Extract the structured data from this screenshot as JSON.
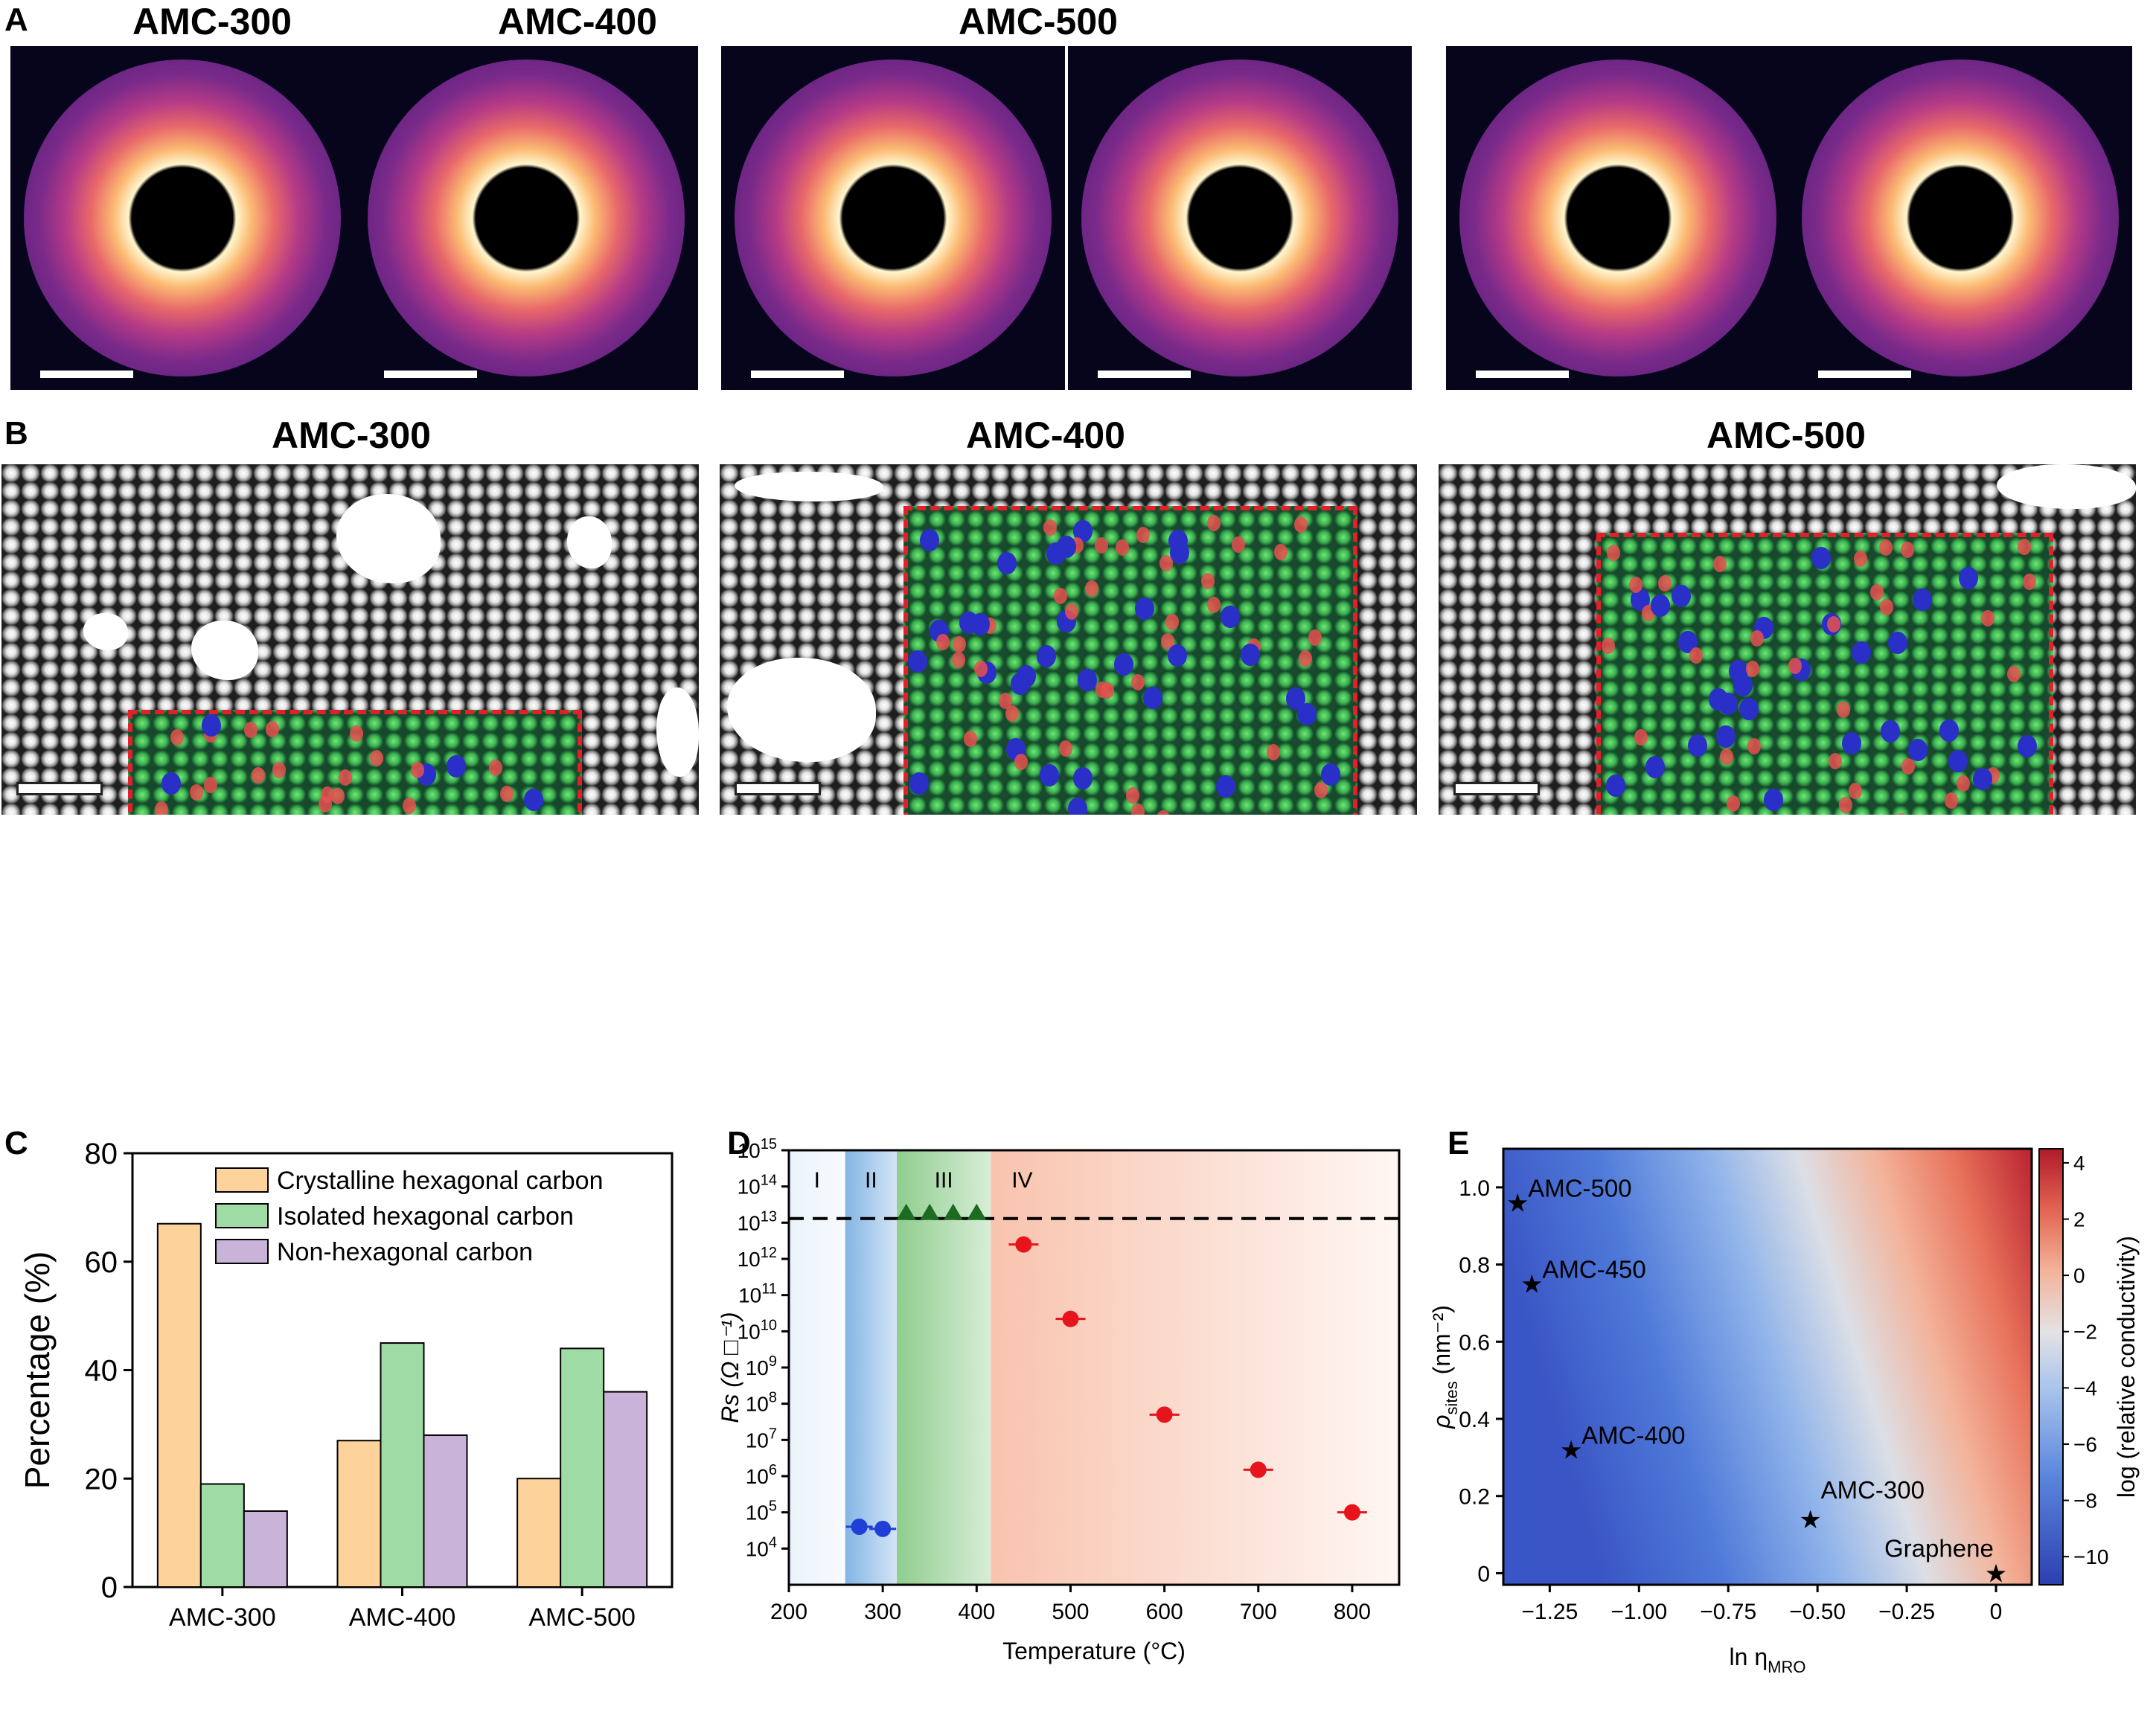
{
  "panelA": {
    "letter": "A",
    "groups": [
      {
        "title": "AMC-300"
      },
      {
        "title": "AMC-400"
      },
      {
        "title": "AMC-500"
      }
    ]
  },
  "panelB": {
    "letter": "B",
    "groups": [
      {
        "title": "AMC-300"
      },
      {
        "title": "AMC-400"
      },
      {
        "title": "AMC-500"
      }
    ]
  },
  "panelC": {
    "letter": "C"
  },
  "panelD": {
    "letter": "D"
  },
  "panelE": {
    "letter": "E"
  },
  "colors": {
    "crystalline": "#fdd39b",
    "isolated": "#9fdba4",
    "nonhex": "#c9b3d9",
    "roi_border": "#e3202a",
    "region_I": "#e8f1fb",
    "region_II": "#6ea8e0",
    "region_III": "#7cc47a",
    "region_IV": "#f7b9a0",
    "red_points": "#e8141b",
    "blue_points": "#1f3fd6",
    "green_points": "#1c6b21"
  },
  "chart_data": [
    {
      "type": "bar",
      "categories": [
        "AMC-300",
        "AMC-400",
        "AMC-500"
      ],
      "series": [
        {
          "name": "Crystalline hexagonal carbon",
          "values": [
            67,
            27,
            20
          ]
        },
        {
          "name": "Isolated hexagonal carbon",
          "values": [
            19,
            45,
            44
          ]
        },
        {
          "name": "Non-hexagonal carbon",
          "values": [
            14,
            28,
            36
          ]
        }
      ],
      "ylabel": "Percentage (%)",
      "ylim": [
        0,
        80
      ],
      "yticks": [
        "0",
        "20",
        "40",
        "60",
        "80"
      ],
      "legend": "top-right"
    },
    {
      "type": "scatter",
      "xlabel": "Temperature (°C)",
      "ylabel": "Rs (Ω □⁻¹)",
      "xlim": [
        200,
        850
      ],
      "xticks": [
        "200",
        "300",
        "400",
        "500",
        "600",
        "700",
        "800"
      ],
      "yscale": "log",
      "ylim": [
        1000,
        1000000000000000
      ],
      "ytick_exponents": [
        "4",
        "5",
        "6",
        "7",
        "8",
        "9",
        "10",
        "11",
        "12",
        "13",
        "14",
        "15"
      ],
      "ytick_base": "10",
      "regions": [
        {
          "label": "I",
          "x": [
            200,
            260
          ]
        },
        {
          "label": "II",
          "x": [
            260,
            315
          ]
        },
        {
          "label": "III",
          "x": [
            315,
            415
          ]
        },
        {
          "label": "IV",
          "x": [
            415,
            850
          ]
        }
      ],
      "dashed_line": 13000000000000,
      "series": [
        {
          "values": [
            [
              275,
              40000
            ],
            [
              300,
              35000
            ]
          ]
        },
        {
          "values": [
            [
              325,
              13000000000000
            ],
            [
              350,
              13000000000000
            ],
            [
              375,
              13000000000000
            ],
            [
              400,
              13000000000000
            ]
          ]
        },
        {
          "values": [
            [
              450,
              2500000000000
            ],
            [
              500,
              22000000000
            ],
            [
              600,
              50000000
            ],
            [
              700,
              1500000
            ],
            [
              800,
              100000
            ]
          ]
        }
      ]
    },
    {
      "type": "heatmap",
      "xlabel_main": "ln η",
      "xlabel_sub": "MRO",
      "ylabel_main": "ρ",
      "ylabel_sub": "sites",
      "ylabel_unit": " (nm⁻²)",
      "xlim": [
        -1.38,
        0.1
      ],
      "ylim": [
        -0.03,
        1.1
      ],
      "xticks": [
        "−1.25",
        "−1.00",
        "−0.75",
        "−0.50",
        "−0.25",
        "0"
      ],
      "yticks": [
        "0",
        "0.2",
        "0.4",
        "0.6",
        "0.8",
        "1.0"
      ],
      "colorbar_label": "log (relative conductivity)",
      "colorbar_range": [
        -11,
        4.5
      ],
      "colorbar_ticks": [
        "4",
        "2",
        "0",
        "−2",
        "−4",
        "−6",
        "−8",
        "−10"
      ],
      "points": [
        {
          "label": "AMC-500",
          "x": -1.34,
          "y": 0.96
        },
        {
          "label": "AMC-450",
          "x": -1.3,
          "y": 0.75
        },
        {
          "label": "AMC-400",
          "x": -1.19,
          "y": 0.32
        },
        {
          "label": "AMC-300",
          "x": -0.52,
          "y": 0.14
        },
        {
          "label": "Graphene",
          "x": 0,
          "y": 0
        }
      ]
    }
  ]
}
